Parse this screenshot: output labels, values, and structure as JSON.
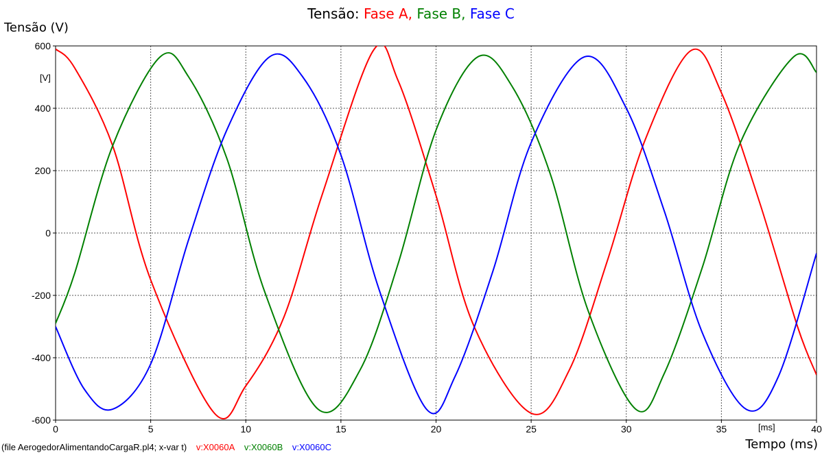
{
  "colors": {
    "phase_a": "#ff0000",
    "phase_b": "#008000",
    "phase_c": "#0000ff"
  },
  "chart_data": {
    "type": "line",
    "title_parts": [
      {
        "text": "Tensão: ",
        "color": "#000000"
      },
      {
        "text": "Fase A, ",
        "color": "#ff0000"
      },
      {
        "text": "Fase B, ",
        "color": "#008000"
      },
      {
        "text": "Fase C",
        "color": "#0000ff"
      }
    ],
    "ylabel": "Tensão (V)",
    "xlabel": "Tempo (ms)",
    "y_unit": "[V]",
    "x_unit": "[ms]",
    "xlim": [
      0,
      40
    ],
    "ylim": [
      -600,
      600
    ],
    "x_ticks": [
      0,
      5,
      10,
      15,
      20,
      25,
      30,
      35,
      40
    ],
    "y_ticks": [
      -600,
      -400,
      -200,
      0,
      200,
      400,
      600
    ],
    "grid": true,
    "footer": {
      "file": "(file AerogedorAlimentandoCargaR.pl4; x-var t)",
      "legend": [
        "v:X0060A",
        "v:X0060B",
        "v:X0060C"
      ]
    },
    "series": [
      {
        "name": "v:X0060A",
        "color": "#ff0000",
        "x": [
          0,
          1,
          3,
          5,
          8.35,
          10,
          12,
          14,
          16.7,
          18,
          20,
          22,
          25,
          27,
          29,
          31,
          33.4,
          35,
          37,
          39,
          40
        ],
        "y": [
          590,
          530,
          280,
          -150,
          -578,
          -490,
          -270,
          120,
          585,
          490,
          120,
          -300,
          -578,
          -440,
          -90,
          300,
          585,
          450,
          100,
          -300,
          -455
        ]
      },
      {
        "name": "v:X0060B",
        "color": "#008000",
        "x": [
          0,
          1,
          3,
          5.5,
          7,
          9,
          11,
          13.8,
          16,
          18,
          20,
          22.2,
          24,
          26,
          28,
          30.5,
          32,
          34,
          36,
          38.8,
          40
        ],
        "y": [
          -290,
          -130,
          280,
          565,
          500,
          240,
          -190,
          -565,
          -440,
          -100,
          330,
          565,
          470,
          190,
          -250,
          -565,
          -450,
          -110,
          290,
          565,
          515
        ]
      },
      {
        "name": "v:X0060C",
        "color": "#0000ff",
        "x": [
          0,
          1.5,
          3,
          5,
          7,
          9,
          11.25,
          13,
          15,
          17,
          19.5,
          21,
          23,
          25,
          27.8,
          30,
          32,
          34,
          36.3,
          38,
          40
        ],
        "y": [
          -300,
          -500,
          -565,
          -420,
          -20,
          330,
          565,
          500,
          250,
          -180,
          -565,
          -460,
          -120,
          290,
          565,
          400,
          70,
          -320,
          -565,
          -460,
          -65
        ]
      }
    ]
  }
}
